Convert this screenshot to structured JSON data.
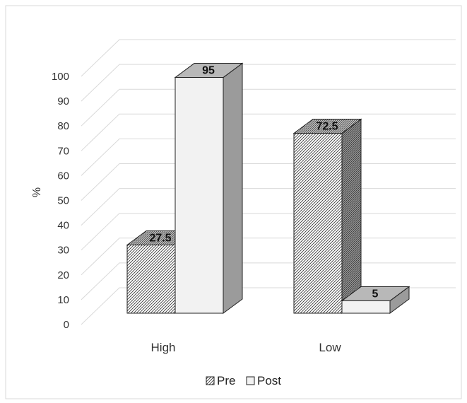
{
  "chart_data": {
    "type": "bar",
    "style": "3d-clustered-column",
    "categories": [
      "High",
      "Low"
    ],
    "series": [
      {
        "name": "Pre",
        "values": [
          27.5,
          72.5
        ],
        "pattern": "diagonal-hatch",
        "color": "#333333"
      },
      {
        "name": "Post",
        "values": [
          95,
          5
        ],
        "pattern": "solid-light",
        "color": "#f2f2f2"
      }
    ],
    "ylabel": "%",
    "xlabel": "",
    "ylim": [
      0,
      100
    ],
    "yticks": [
      0,
      10,
      20,
      30,
      40,
      50,
      60,
      70,
      80,
      90,
      100
    ],
    "grid": true,
    "legend_position": "bottom",
    "data_labels": true
  }
}
